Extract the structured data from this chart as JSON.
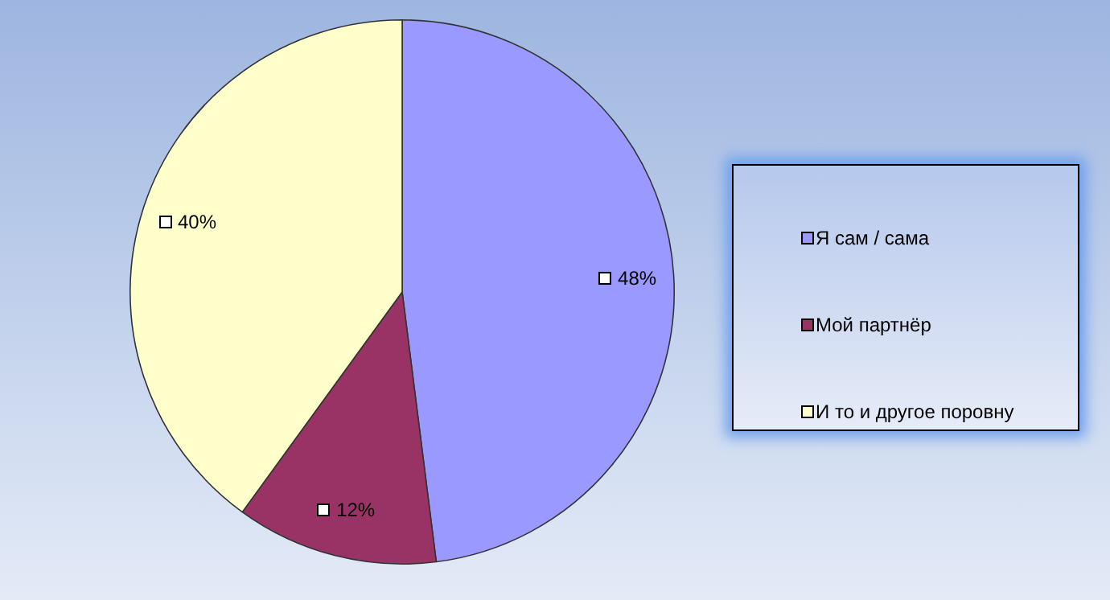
{
  "chart_data": {
    "type": "pie",
    "categories": [
      "Я сам / сама",
      "Мой партнёр",
      "И то и другое поровну"
    ],
    "values": [
      48,
      12,
      40
    ],
    "colors": [
      "#9999ff",
      "#993366",
      "#ffffcc"
    ],
    "value_labels": [
      "48%",
      "12%",
      "40%"
    ],
    "legend": "right"
  }
}
